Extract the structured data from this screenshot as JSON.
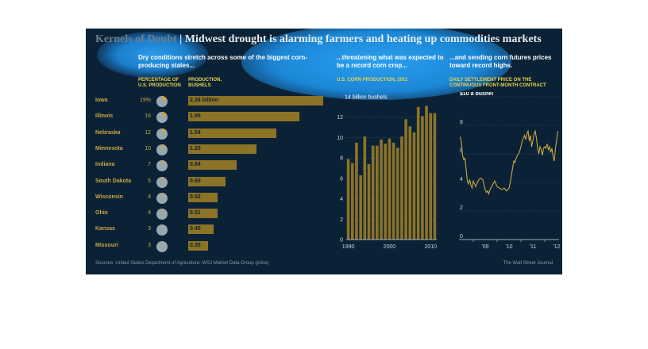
{
  "header": {
    "title_lead": "Kernels of Doubt",
    "title_rest": " | Midwest drought is alarming farmers and heating up commodities markets"
  },
  "left_panel": {
    "headline": "Dry conditions stretch across some of the biggest corn-producing states...",
    "col_pct": "PERCENTAGE OF U.S. PRODUCTION",
    "col_prod": "PRODUCTION, BUSHELS"
  },
  "mid_panel": {
    "headline": "...threatening what was expected to be a record corn crop...",
    "sub": "U.S. CORN PRODUCTION, 2011"
  },
  "right_panel": {
    "headline": "...and sending corn futures prices toward record highs.",
    "sub": "DAILY SETTLEMENT PRICE ON THE CONTINUOUS FRONT-MONTH CONTRACT"
  },
  "footer": {
    "source": "Sources: United States Department of Agriculture; WSJ Market Data Group (price)",
    "credit": "The Wall Street Journal"
  },
  "colors": {
    "background": "#0b2236",
    "bar": "#8c7326",
    "accent": "#c9a640",
    "pie": "#9aa6b0",
    "highlight": "#1e88d8"
  },
  "chart_data": [
    {
      "type": "bar",
      "categories": [
        "Iowa",
        "Illinois",
        "Nebraska",
        "Minnesota",
        "Indiana",
        "South Dakota",
        "Wisconsin",
        "Ohio",
        "Kansas",
        "Missouri"
      ],
      "pct": [
        "19%",
        "16",
        "12",
        "10",
        "7",
        "5",
        "4",
        "4",
        "3",
        "3"
      ],
      "pct_values": [
        19,
        16,
        12,
        10,
        7,
        5,
        4,
        4,
        3,
        3
      ],
      "labels": [
        "2.36 billion",
        "1.95",
        "1.54",
        "1.20",
        "0.84",
        "0.65",
        "0.52",
        "0.51",
        "0.45",
        "0.35"
      ],
      "values": [
        2.36,
        1.95,
        1.54,
        1.2,
        0.84,
        0.65,
        0.52,
        0.51,
        0.45,
        0.35
      ]
    },
    {
      "type": "bar",
      "x": [
        1990,
        1991,
        1992,
        1993,
        1994,
        1995,
        1996,
        1997,
        1998,
        1999,
        2000,
        2001,
        2002,
        2003,
        2004,
        2005,
        2006,
        2007,
        2008,
        2009,
        2010,
        2011
      ],
      "values": [
        7.9,
        7.5,
        9.5,
        6.3,
        10.1,
        7.4,
        9.2,
        9.2,
        9.8,
        9.4,
        9.9,
        9.5,
        9.0,
        10.1,
        11.8,
        11.1,
        10.5,
        13.0,
        12.1,
        13.1,
        12.4,
        12.4
      ],
      "ylim": [
        0,
        14
      ],
      "yticks": [
        0,
        2,
        4,
        6,
        8,
        10,
        12,
        14
      ],
      "ytick_labels": [
        "0",
        "2",
        "4",
        "6",
        "8",
        "10",
        "12",
        "14 billion bushels"
      ],
      "xticks": [
        "1990",
        "2000",
        "2010"
      ]
    },
    {
      "type": "line",
      "ylim": [
        0,
        10
      ],
      "yticks": [
        0,
        2,
        4,
        6,
        8,
        10
      ],
      "ytick_labels": [
        "0",
        "2",
        "4",
        "6",
        "8",
        "$10 a bushel"
      ],
      "xticks": [
        "'09",
        "'10",
        "'11",
        "'12"
      ],
      "x_range": [
        2008.4,
        2012.6
      ],
      "points": [
        [
          2008.45,
          7.2
        ],
        [
          2008.5,
          6.8
        ],
        [
          2008.55,
          5.9
        ],
        [
          2008.6,
          5.6
        ],
        [
          2008.65,
          5.7
        ],
        [
          2008.7,
          4.9
        ],
        [
          2008.75,
          4.1
        ],
        [
          2008.8,
          3.9
        ],
        [
          2008.85,
          4.2
        ],
        [
          2008.9,
          3.8
        ],
        [
          2008.95,
          3.6
        ],
        [
          2009.0,
          4.1
        ],
        [
          2009.05,
          3.9
        ],
        [
          2009.1,
          3.7
        ],
        [
          2009.15,
          3.9
        ],
        [
          2009.2,
          4.1
        ],
        [
          2009.3,
          4.3
        ],
        [
          2009.4,
          4.2
        ],
        [
          2009.45,
          3.8
        ],
        [
          2009.5,
          3.5
        ],
        [
          2009.55,
          3.3
        ],
        [
          2009.6,
          3.4
        ],
        [
          2009.65,
          3.2
        ],
        [
          2009.7,
          3.5
        ],
        [
          2009.8,
          3.8
        ],
        [
          2009.9,
          4.1
        ],
        [
          2010.0,
          3.7
        ],
        [
          2010.1,
          3.6
        ],
        [
          2010.2,
          3.5
        ],
        [
          2010.3,
          3.6
        ],
        [
          2010.4,
          3.4
        ],
        [
          2010.5,
          3.6
        ],
        [
          2010.55,
          4.0
        ],
        [
          2010.6,
          4.5
        ],
        [
          2010.65,
          5.0
        ],
        [
          2010.7,
          5.5
        ],
        [
          2010.75,
          5.4
        ],
        [
          2010.8,
          5.7
        ],
        [
          2010.85,
          5.9
        ],
        [
          2010.9,
          6.0
        ],
        [
          2010.95,
          6.2
        ],
        [
          2011.0,
          6.5
        ],
        [
          2011.05,
          6.9
        ],
        [
          2011.1,
          7.1
        ],
        [
          2011.15,
          7.3
        ],
        [
          2011.2,
          7.0
        ],
        [
          2011.25,
          7.4
        ],
        [
          2011.3,
          7.6
        ],
        [
          2011.35,
          6.9
        ],
        [
          2011.4,
          7.3
        ],
        [
          2011.45,
          6.5
        ],
        [
          2011.5,
          6.9
        ],
        [
          2011.55,
          7.4
        ],
        [
          2011.6,
          7.6
        ],
        [
          2011.65,
          7.1
        ],
        [
          2011.7,
          6.4
        ],
        [
          2011.75,
          6.0
        ],
        [
          2011.8,
          6.5
        ],
        [
          2011.85,
          6.3
        ],
        [
          2011.9,
          5.9
        ],
        [
          2011.95,
          6.4
        ],
        [
          2012.0,
          6.5
        ],
        [
          2012.05,
          6.4
        ],
        [
          2012.1,
          6.7
        ],
        [
          2012.15,
          6.3
        ],
        [
          2012.2,
          6.5
        ],
        [
          2012.25,
          6.1
        ],
        [
          2012.3,
          6.4
        ],
        [
          2012.35,
          5.8
        ],
        [
          2012.4,
          5.5
        ],
        [
          2012.45,
          6.4
        ],
        [
          2012.5,
          7.0
        ],
        [
          2012.55,
          7.6
        ]
      ]
    }
  ]
}
